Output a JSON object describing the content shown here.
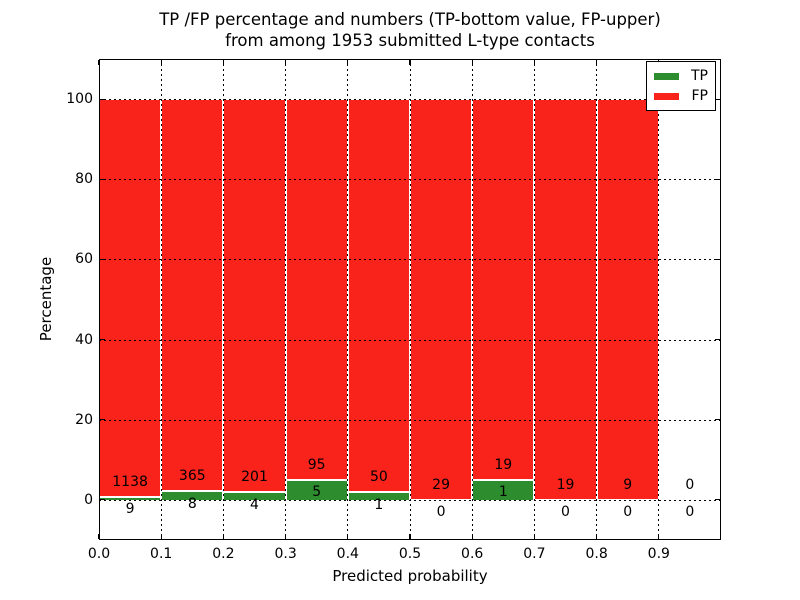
{
  "figure": {
    "title_line1": "TP /FP percentage and numbers (TP-bottom value, FP-upper)",
    "title_line2": "from among 1953 submitted L-type contacts"
  },
  "axes": {
    "xlabel": "Predicted probability",
    "ylabel": "Percentage"
  },
  "legend": {
    "position": "upper right",
    "items": [
      {
        "label": "TP",
        "color": "#2d8c2d"
      },
      {
        "label": "FP",
        "color": "#fa231c"
      }
    ]
  },
  "chart_data": {
    "type": "bar",
    "stacked": true,
    "normalized_to_100_percent": true,
    "title": "TP /FP percentage and numbers (TP-bottom value, FP-upper) from among 1953 submitted L-type contacts",
    "xlabel": "Predicted probability",
    "ylabel": "Percentage",
    "total_contacts": 1953,
    "xlim": [
      0.0,
      1.0
    ],
    "ylim": [
      -10,
      110
    ],
    "grid": "dotted",
    "bin_width": 0.1,
    "bin_starts": [
      0.0,
      0.1,
      0.2,
      0.3,
      0.4,
      0.5,
      0.6,
      0.7,
      0.8,
      0.9
    ],
    "xtick_labels": [
      "0.0",
      "0.1",
      "0.2",
      "0.3",
      "0.4",
      "0.5",
      "0.6",
      "0.7",
      "0.8",
      "0.9"
    ],
    "xtick_values": [
      0.0,
      0.1,
      0.2,
      0.3,
      0.4,
      0.5,
      0.6,
      0.7,
      0.8,
      0.9
    ],
    "ytick_labels": [
      "0",
      "20",
      "40",
      "60",
      "80",
      "100"
    ],
    "ytick_values": [
      0,
      20,
      40,
      60,
      80,
      100
    ],
    "series": [
      {
        "name": "TP",
        "color": "#2d8c2d",
        "counts": [
          9,
          8,
          4,
          5,
          1,
          0,
          1,
          0,
          0,
          0
        ]
      },
      {
        "name": "FP",
        "color": "#fa231c",
        "counts": [
          1138,
          365,
          201,
          95,
          50,
          29,
          19,
          19,
          9,
          0
        ]
      }
    ],
    "tp_percent_heights": [
      0.78,
      2.14,
      1.95,
      5.0,
      1.96,
      0.0,
      5.0,
      0.0,
      0.0,
      0.0
    ],
    "bar_edge_color": "#ffffff"
  }
}
